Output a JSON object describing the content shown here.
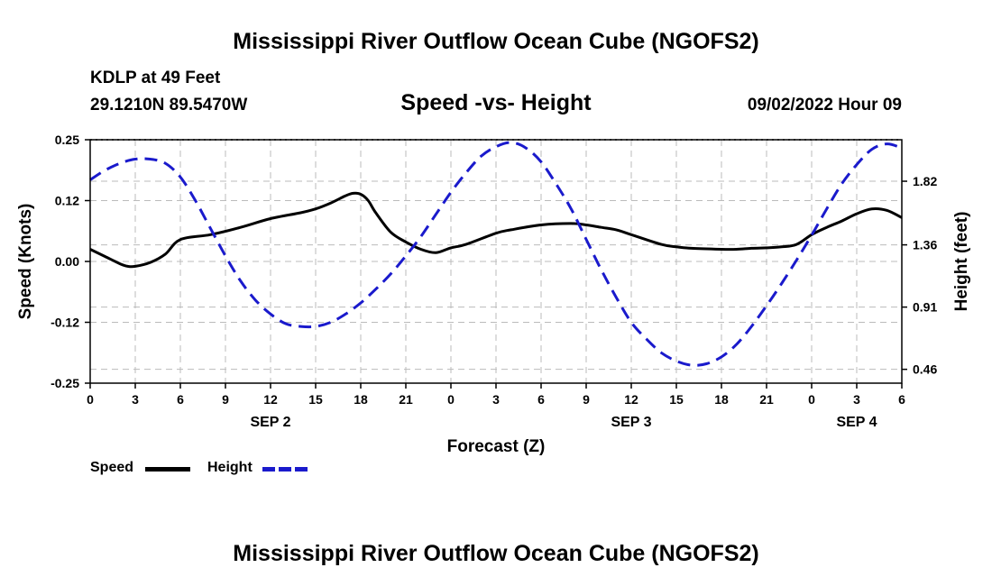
{
  "header": {
    "title": "Mississippi River Outflow Ocean Cube (NGOFS2)",
    "station": "KDLP at 49 Feet",
    "coords": "29.1210N  89.5470W",
    "subtitle": "Speed -vs- Height",
    "datetime": "09/02/2022 Hour 09"
  },
  "footer": {
    "title": "Mississippi River Outflow Ocean Cube (NGOFS2)"
  },
  "colors": {
    "speed": "#000000",
    "height": "#1a1acc",
    "grid": "#bbbbbb"
  },
  "chart_data": {
    "type": "line",
    "xlabel": "Forecast (Z)",
    "ylabel": "Speed (Knots)",
    "y2label": "Height (feet)",
    "x_range_hours": [
      0,
      54
    ],
    "x_ticks": [
      "0",
      "3",
      "6",
      "9",
      "12",
      "15",
      "18",
      "21",
      "0",
      "3",
      "6",
      "9",
      "12",
      "15",
      "18",
      "21",
      "0",
      "3",
      "6"
    ],
    "x_tick_hours": [
      0,
      3,
      6,
      9,
      12,
      15,
      18,
      21,
      24,
      27,
      30,
      33,
      36,
      39,
      42,
      45,
      48,
      51,
      54
    ],
    "dates": [
      {
        "label": "SEP 2",
        "hour": 12
      },
      {
        "label": "SEP 3",
        "hour": 36
      },
      {
        "label": "SEP 4",
        "hour": 51
      }
    ],
    "ylim": [
      -0.25,
      0.25
    ],
    "y_ticks": [
      "0.25",
      "0.12",
      "0.00",
      "-0.12",
      "-0.25"
    ],
    "y_tick_values": [
      0.25,
      0.125,
      0.0,
      -0.125,
      -0.25
    ],
    "y2lim": [
      0.36,
      2.12
    ],
    "y2_ticks": [
      "1.82",
      "1.36",
      "0.91",
      "0.46"
    ],
    "y2_tick_values": [
      1.82,
      1.36,
      0.91,
      0.46
    ],
    "legend": [
      {
        "name": "Speed"
      },
      {
        "name": "Height"
      }
    ],
    "series": [
      {
        "name": "Speed",
        "axis": "left",
        "style": "solid",
        "x": [
          0,
          1,
          2,
          2.5,
          3,
          4,
          5,
          6,
          8,
          10,
          12,
          14,
          15,
          16,
          17,
          17.5,
          18,
          18.5,
          19,
          20,
          21,
          22,
          23,
          24,
          25,
          27,
          28,
          30,
          32,
          33,
          34,
          35,
          36,
          38,
          39,
          40,
          42,
          43,
          44,
          45,
          46,
          47,
          48,
          49,
          50,
          51,
          52,
          53,
          54
        ],
        "values": [
          0.025,
          0.01,
          -0.005,
          -0.01,
          -0.01,
          -0.002,
          0.015,
          0.045,
          0.055,
          0.07,
          0.088,
          0.1,
          0.108,
          0.12,
          0.135,
          0.14,
          0.138,
          0.125,
          0.1,
          0.06,
          0.04,
          0.025,
          0.018,
          0.028,
          0.035,
          0.058,
          0.065,
          0.075,
          0.078,
          0.075,
          0.07,
          0.065,
          0.055,
          0.035,
          0.03,
          0.027,
          0.025,
          0.025,
          0.027,
          0.028,
          0.03,
          0.035,
          0.055,
          0.07,
          0.083,
          0.098,
          0.108,
          0.105,
          0.09
        ]
      },
      {
        "name": "Height",
        "axis": "right",
        "style": "dashed",
        "x": [
          0,
          1,
          2,
          3,
          4,
          5,
          6,
          7,
          8,
          9,
          10,
          11,
          12,
          13,
          14,
          15,
          16,
          17,
          18,
          19,
          20,
          21,
          22,
          23,
          24,
          25,
          26,
          27,
          28,
          29,
          30,
          31,
          32,
          33,
          34,
          35,
          36,
          37,
          38,
          39,
          40,
          41,
          42,
          43,
          44,
          45,
          46,
          47,
          48,
          49,
          50,
          51,
          52,
          53,
          54
        ],
        "values": [
          1.83,
          1.9,
          1.95,
          1.98,
          1.98,
          1.95,
          1.85,
          1.68,
          1.48,
          1.28,
          1.1,
          0.96,
          0.86,
          0.79,
          0.77,
          0.77,
          0.8,
          0.86,
          0.94,
          1.04,
          1.15,
          1.28,
          1.42,
          1.58,
          1.74,
          1.88,
          2.0,
          2.07,
          2.1,
          2.06,
          1.96,
          1.8,
          1.62,
          1.4,
          1.18,
          0.98,
          0.8,
          0.68,
          0.58,
          0.52,
          0.49,
          0.5,
          0.55,
          0.64,
          0.77,
          0.92,
          1.08,
          1.25,
          1.43,
          1.62,
          1.8,
          1.94,
          2.05,
          2.09,
          2.06
        ]
      }
    ]
  }
}
